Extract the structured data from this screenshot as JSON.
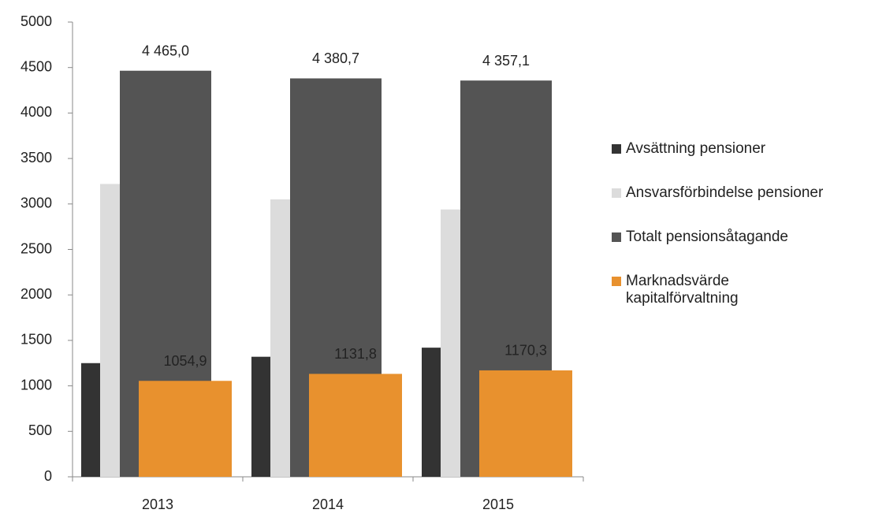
{
  "chart_data": {
    "type": "bar",
    "categories": [
      "2013",
      "2014",
      "2015"
    ],
    "series": [
      {
        "name": "Avsättning pensioner",
        "color": "#333333",
        "values": [
          1250,
          1320,
          1420
        ]
      },
      {
        "name": "Ansvarsförbindelse pensioner",
        "color": "#dcdcdc",
        "values": [
          3220,
          3050,
          2940
        ]
      },
      {
        "name": "Totalt pensionsåtagande",
        "color": "#545454",
        "values": [
          4465.0,
          4380.7,
          4357.1
        ],
        "value_labels": [
          "4 465,0",
          "4 380,7",
          "4 357,1"
        ]
      },
      {
        "name": "Marknadsvärde kapitalförvaltning",
        "color": "#e8912e",
        "values": [
          1054.9,
          1131.8,
          1170.3
        ],
        "value_labels": [
          "1054,9",
          "1131,8",
          "1170,3"
        ]
      }
    ],
    "ylim": [
      0,
      5000
    ],
    "yticks": [
      0,
      500,
      1000,
      1500,
      2000,
      2500,
      3000,
      3500,
      4000,
      4500,
      5000
    ],
    "grid": false,
    "legend": "right"
  }
}
